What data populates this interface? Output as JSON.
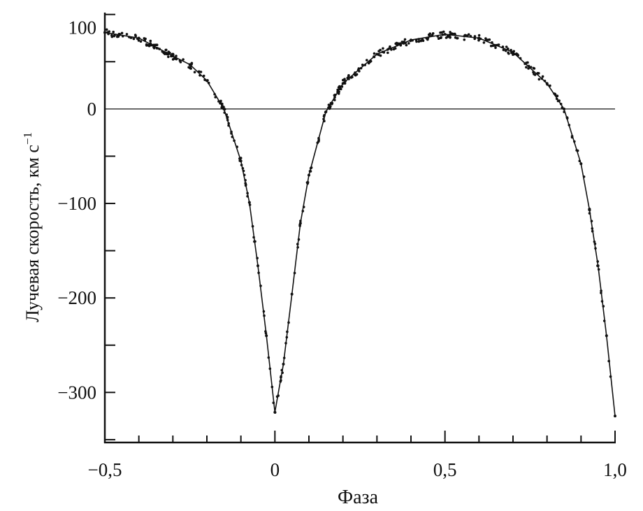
{
  "chart_data": {
    "type": "scatter",
    "title": "",
    "xlabel": "Фаза",
    "ylabel": "Лучевая скорость,  км с",
    "ylabel_sup": "−1",
    "xlim": [
      -0.5,
      1.0
    ],
    "ylim": [
      -353,
      102
    ],
    "x_ticks": [
      {
        "value": -0.5,
        "label": "−0,5"
      },
      {
        "value": 0,
        "label": "0"
      },
      {
        "value": 0.5,
        "label": "0,5"
      },
      {
        "value": 1.0,
        "label": "1,0"
      }
    ],
    "x_minor_step": 0.1,
    "y_ticks": [
      {
        "value": 100,
        "label": "100"
      },
      {
        "value": 0,
        "label": "0"
      },
      {
        "value": -100,
        "label": "−100"
      },
      {
        "value": -200,
        "label": "−200"
      },
      {
        "value": -300,
        "label": "−300"
      }
    ],
    "y_minor_step": 50,
    "zero_line": true,
    "grid": false,
    "color": "#111111",
    "series": [
      {
        "kind": "line+points",
        "x": [
          -0.5,
          -0.4,
          -0.3,
          -0.25,
          -0.2,
          -0.15,
          -0.1,
          -0.075,
          -0.05,
          -0.025,
          0,
          0.025,
          0.05,
          0.075,
          0.1,
          0.15,
          0.2,
          0.3,
          0.4,
          0.5,
          0.6,
          0.7,
          0.8,
          0.85,
          0.9,
          0.925,
          0.95,
          0.975,
          1.0
        ],
        "y": [
          81,
          75,
          56,
          47,
          30,
          0,
          -55,
          -99,
          -166,
          -240,
          -321,
          -270,
          -196,
          -121,
          -70,
          -3,
          27,
          58,
          73,
          79,
          75,
          60,
          27,
          0,
          -58,
          -107,
          -166,
          -240,
          -325
        ]
      }
    ]
  }
}
